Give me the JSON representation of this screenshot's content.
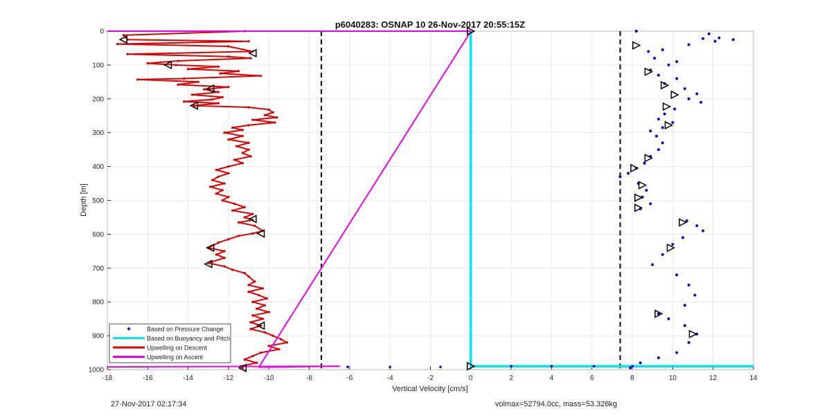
{
  "chart_data": {
    "type": "line",
    "title": "p6040283: OSNAP 10 26-Nov-2017 20:55:15Z",
    "xlabel": "Vertical Velocity [cm/s]",
    "ylabel": "Depth [m]",
    "xlim": [
      -18,
      14
    ],
    "ylim": [
      1000,
      0
    ],
    "y_reversed": true,
    "grid": true,
    "xticks": [
      -18,
      -16,
      -14,
      -12,
      -10,
      -8,
      -6,
      -4,
      -2,
      0,
      2,
      4,
      6,
      8,
      10,
      12,
      14
    ],
    "yticks": [
      0,
      100,
      200,
      300,
      400,
      500,
      600,
      700,
      800,
      900,
      1000
    ],
    "legend_position": "bottom-left",
    "legend": [
      {
        "label": "Based on Pressure Change",
        "color": "#0000cc",
        "style": "dot"
      },
      {
        "label": "Based on Buoyancy and Pitch",
        "color": "#00e5ee",
        "style": "line"
      },
      {
        "label": "Upwelling on Descent",
        "color": "#dd0000",
        "style": "line"
      },
      {
        "label": "Upwelling on Ascent",
        "color": "#ee00ee",
        "style": "line"
      }
    ],
    "reference_lines": {
      "x": [
        -7.4,
        7.4
      ],
      "style": "dashed",
      "color": "#000000"
    },
    "series": [
      {
        "name": "Upwelling on Descent",
        "color": "#dd0000",
        "points": [
          [
            -11.2,
            0
          ],
          [
            -17.2,
            12
          ],
          [
            -17.0,
            25
          ],
          [
            -11.0,
            30
          ],
          [
            -17.5,
            38
          ],
          [
            -12.0,
            45
          ],
          [
            -10.8,
            60
          ],
          [
            -17.0,
            68
          ],
          [
            -12.0,
            75
          ],
          [
            -10.9,
            80
          ],
          [
            -14.5,
            88
          ],
          [
            -16.0,
            95
          ],
          [
            -14.6,
            100
          ],
          [
            -12.5,
            105
          ],
          [
            -14.0,
            112
          ],
          [
            -11.5,
            118
          ],
          [
            -12.4,
            125
          ],
          [
            -10.4,
            132
          ],
          [
            -14.2,
            140
          ],
          [
            -16.5,
            143
          ],
          [
            -13.5,
            150
          ],
          [
            -14.5,
            158
          ],
          [
            -12.0,
            165
          ],
          [
            -13.2,
            172
          ],
          [
            -12.5,
            180
          ],
          [
            -13.8,
            188
          ],
          [
            -12.3,
            195
          ],
          [
            -12.8,
            202
          ],
          [
            -14.2,
            208
          ],
          [
            -12.5,
            213
          ],
          [
            -13.7,
            220
          ],
          [
            -11.0,
            225
          ],
          [
            -10.0,
            232
          ],
          [
            -9.8,
            240
          ],
          [
            -10.2,
            248
          ],
          [
            -9.6,
            255
          ],
          [
            -10.8,
            262
          ],
          [
            -9.7,
            270
          ],
          [
            -11.0,
            278
          ],
          [
            -11.8,
            285
          ],
          [
            -11.3,
            292
          ],
          [
            -12.2,
            300
          ],
          [
            -11.3,
            310
          ],
          [
            -12.0,
            320
          ],
          [
            -11.0,
            330
          ],
          [
            -11.6,
            340
          ],
          [
            -11.0,
            350
          ],
          [
            -11.3,
            360
          ],
          [
            -10.9,
            370
          ],
          [
            -11.7,
            380
          ],
          [
            -11.3,
            390
          ],
          [
            -12.0,
            400
          ],
          [
            -12.6,
            410
          ],
          [
            -12.0,
            420
          ],
          [
            -12.5,
            430
          ],
          [
            -12.8,
            440
          ],
          [
            -12.2,
            450
          ],
          [
            -12.9,
            460
          ],
          [
            -12.3,
            470
          ],
          [
            -12.6,
            480
          ],
          [
            -12.0,
            490
          ],
          [
            -12.3,
            500
          ],
          [
            -11.7,
            510
          ],
          [
            -11.2,
            520
          ],
          [
            -11.8,
            530
          ],
          [
            -10.8,
            540
          ],
          [
            -11.2,
            550
          ],
          [
            -10.8,
            558
          ],
          [
            -11.5,
            565
          ],
          [
            -10.7,
            575
          ],
          [
            -10.3,
            590
          ],
          [
            -10.8,
            598
          ],
          [
            -11.5,
            605
          ],
          [
            -12.0,
            615
          ],
          [
            -12.5,
            625
          ],
          [
            -13.0,
            640
          ],
          [
            -12.2,
            650
          ],
          [
            -12.6,
            660
          ],
          [
            -12.2,
            670
          ],
          [
            -13.0,
            685
          ],
          [
            -12.2,
            695
          ],
          [
            -11.8,
            705
          ],
          [
            -11.2,
            715
          ],
          [
            -11.0,
            725
          ],
          [
            -10.7,
            740
          ],
          [
            -11.0,
            750
          ],
          [
            -10.3,
            760
          ],
          [
            -11.0,
            770
          ],
          [
            -10.5,
            780
          ],
          [
            -10.1,
            790
          ],
          [
            -10.8,
            800
          ],
          [
            -10.2,
            810
          ],
          [
            -10.6,
            820
          ],
          [
            -10.0,
            830
          ],
          [
            -10.8,
            840
          ],
          [
            -10.3,
            850
          ],
          [
            -10.9,
            860
          ],
          [
            -10.4,
            870
          ],
          [
            -10.9,
            880
          ],
          [
            -10.2,
            890
          ],
          [
            -9.8,
            900
          ],
          [
            -9.4,
            910
          ],
          [
            -9.1,
            920
          ],
          [
            -10.0,
            930
          ],
          [
            -9.5,
            940
          ],
          [
            -10.4,
            950
          ],
          [
            -10.8,
            960
          ],
          [
            -11.2,
            970
          ],
          [
            -10.6,
            980
          ],
          [
            -11.4,
            990
          ],
          [
            -11.3,
            995
          ]
        ]
      },
      {
        "name": "Upwelling on Ascent",
        "color": "#ee00ee",
        "points": [
          [
            -18,
            0
          ],
          [
            0,
            0
          ],
          [
            0,
            1
          ],
          [
            -10.5,
            993
          ],
          [
            -6.5,
            990
          ],
          [
            -18,
            992
          ]
        ]
      },
      {
        "name": "Based on Buoyancy and Pitch",
        "color": "#00e5ee",
        "points": [
          [
            0,
            0
          ],
          [
            0,
            990
          ],
          [
            14,
            990
          ]
        ]
      },
      {
        "name": "Based on Pressure Change",
        "color": "#0000cc",
        "style": "scatter",
        "points": [
          [
            11.8,
            8
          ],
          [
            12.3,
            20
          ],
          [
            13.0,
            25
          ],
          [
            12.1,
            30
          ],
          [
            11.5,
            22
          ],
          [
            8.2,
            0
          ],
          [
            10.8,
            40
          ],
          [
            9.5,
            55
          ],
          [
            8.8,
            60
          ],
          [
            9.1,
            80
          ],
          [
            10.2,
            90
          ],
          [
            9.8,
            100
          ],
          [
            8.9,
            115
          ],
          [
            9.3,
            130
          ],
          [
            10.2,
            140
          ],
          [
            9.6,
            155
          ],
          [
            10.6,
            170
          ],
          [
            11.2,
            185
          ],
          [
            10.8,
            200
          ],
          [
            11.4,
            210
          ],
          [
            10.1,
            230
          ],
          [
            9.6,
            245
          ],
          [
            9.3,
            260
          ],
          [
            10.0,
            270
          ],
          [
            9.5,
            285
          ],
          [
            8.9,
            295
          ],
          [
            9.2,
            310
          ],
          [
            9.5,
            330
          ],
          [
            9.3,
            350
          ],
          [
            8.9,
            370
          ],
          [
            8.6,
            390
          ],
          [
            8.2,
            405
          ],
          [
            7.8,
            420
          ],
          [
            7.4,
            430
          ],
          [
            8.3,
            450
          ],
          [
            8.7,
            470
          ],
          [
            8.5,
            490
          ],
          [
            8.9,
            510
          ],
          [
            8.4,
            525
          ],
          [
            10.7,
            560
          ],
          [
            11.2,
            575
          ],
          [
            11.5,
            590
          ],
          [
            10.5,
            610
          ],
          [
            10.0,
            630
          ],
          [
            9.5,
            660
          ],
          [
            9.0,
            690
          ],
          [
            10.2,
            720
          ],
          [
            10.8,
            750
          ],
          [
            11.1,
            780
          ],
          [
            10.6,
            810
          ],
          [
            9.3,
            835
          ],
          [
            9.8,
            850
          ],
          [
            10.6,
            870
          ],
          [
            11.2,
            895
          ],
          [
            10.8,
            920
          ],
          [
            10.2,
            950
          ],
          [
            9.3,
            965
          ],
          [
            8.4,
            980
          ],
          [
            7.9,
            995
          ]
        ]
      }
    ],
    "markers_left": [
      [
        -17.2,
        25
      ],
      [
        -10.8,
        65
      ],
      [
        -15.0,
        100
      ],
      [
        -12.9,
        170
      ],
      [
        -13.7,
        220
      ],
      [
        -10.8,
        555
      ],
      [
        -10.4,
        598
      ],
      [
        -12.9,
        640
      ],
      [
        -13.0,
        688
      ],
      [
        -10.4,
        870
      ],
      [
        -11.3,
        995
      ]
    ],
    "markers_right": [
      [
        0,
        0
      ],
      [
        8.2,
        42
      ],
      [
        8.8,
        120
      ],
      [
        9.6,
        160
      ],
      [
        10.1,
        188
      ],
      [
        9.7,
        223
      ],
      [
        9.8,
        278
      ],
      [
        8.8,
        375
      ],
      [
        8.1,
        405
      ],
      [
        8.5,
        455
      ],
      [
        8.3,
        492
      ],
      [
        8.3,
        522
      ],
      [
        10.5,
        565
      ],
      [
        9.9,
        640
      ],
      [
        9.3,
        835
      ],
      [
        11.0,
        895
      ],
      [
        0,
        990
      ]
    ],
    "sparse_ascent_dots": [
      [
        -6.1,
        992
      ],
      [
        -4.0,
        992
      ],
      [
        -1.5,
        992
      ],
      [
        2.0,
        990
      ],
      [
        4.0,
        990
      ],
      [
        6.1,
        990
      ],
      [
        8.0,
        990
      ]
    ]
  },
  "footer": {
    "timestamp": "27-Nov-2017 02:17:34",
    "info": "volmax=52794.0cc, mass=53.328kg"
  }
}
